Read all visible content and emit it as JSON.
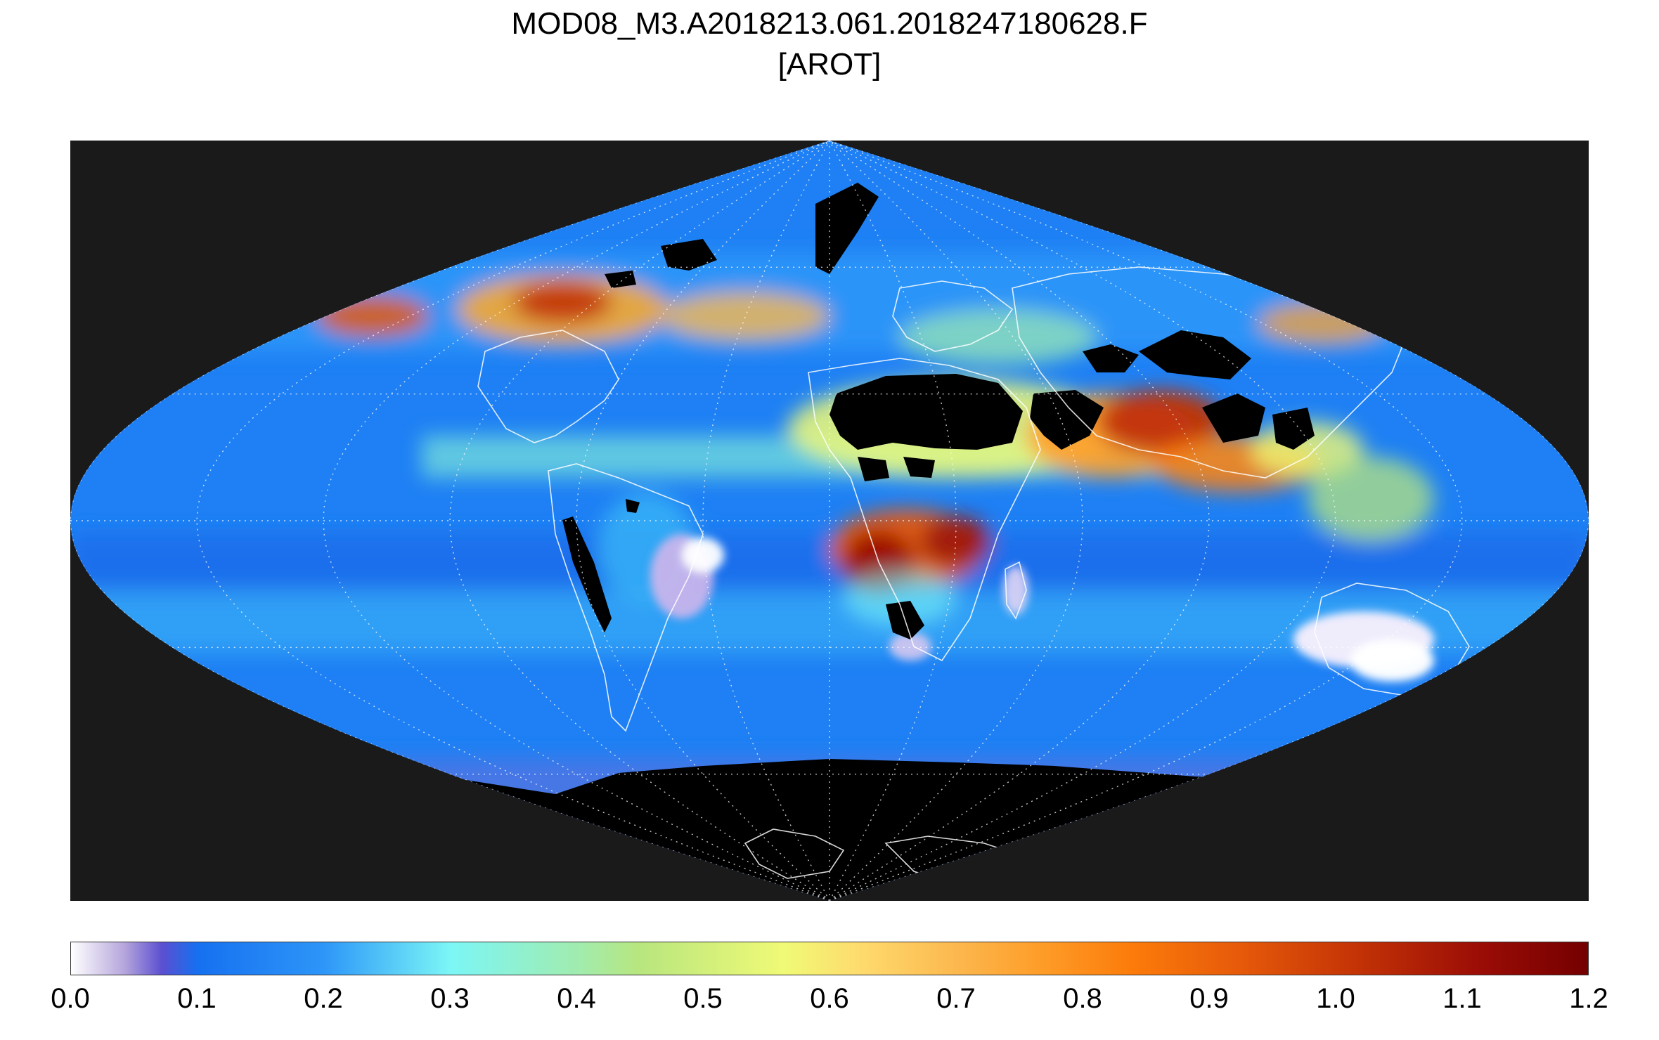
{
  "title": {
    "line1": "MOD08_M3.A2018213.061.2018247180628.F",
    "line2": "[AROT]"
  },
  "map": {
    "projection": "sinusoidal",
    "background_color": "#1a1a1a",
    "no_data_color": "#000000",
    "coastline_color": "#ffffff",
    "graticule": "dotted"
  },
  "colorbar": {
    "min": 0.0,
    "max": 1.2,
    "tick_labels": [
      "0.0",
      "0.1",
      "0.2",
      "0.3",
      "0.4",
      "0.5",
      "0.6",
      "0.7",
      "0.8",
      "0.9",
      "1.0",
      "1.1",
      "1.2"
    ],
    "colors": [
      "#ffffff",
      "#5b4fd0",
      "#1670f0",
      "#7cf6f6",
      "#f0fa76",
      "#fc7b0a",
      "#740000"
    ]
  }
}
